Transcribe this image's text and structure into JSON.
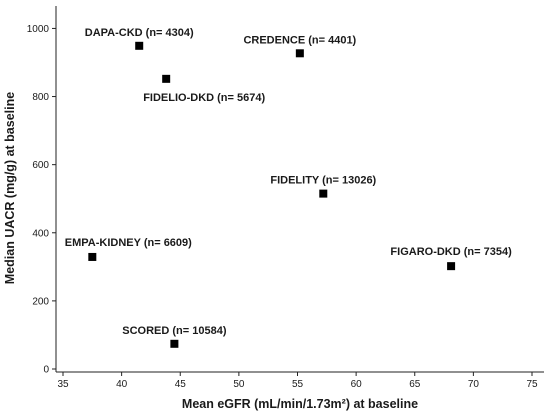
{
  "chart_data": {
    "type": "scatter",
    "title": "",
    "xlabel": "Mean eGFR (mL/min/1.73m²) at baseline",
    "ylabel": "Median UACR (mg/g) at baseline",
    "xlim": [
      35,
      75
    ],
    "ylim": [
      0,
      1060
    ],
    "grid": false,
    "x_ticks": [
      35,
      40,
      45,
      50,
      55,
      60,
      65,
      70,
      75
    ],
    "y_ticks": [
      0,
      200,
      400,
      600,
      800,
      1000
    ],
    "points": [
      {
        "label": "DAPA-CKD (n= 4304)",
        "x": 41.5,
        "y": 949
      },
      {
        "label": "FIDELIO-DKD (n= 5674)",
        "x": 43.8,
        "y": 852
      },
      {
        "label": "CREDENCE (n= 4401)",
        "x": 55.2,
        "y": 927
      },
      {
        "label": "FIDELITY (n= 13026)",
        "x": 57.2,
        "y": 515
      },
      {
        "label": "EMPA-KIDNEY (n= 6609)",
        "x": 37.5,
        "y": 329
      },
      {
        "label": "FIGARO-DKD (n= 7354)",
        "x": 68.1,
        "y": 302
      },
      {
        "label": "SCORED (n= 10584)",
        "x": 44.5,
        "y": 74
      }
    ]
  }
}
